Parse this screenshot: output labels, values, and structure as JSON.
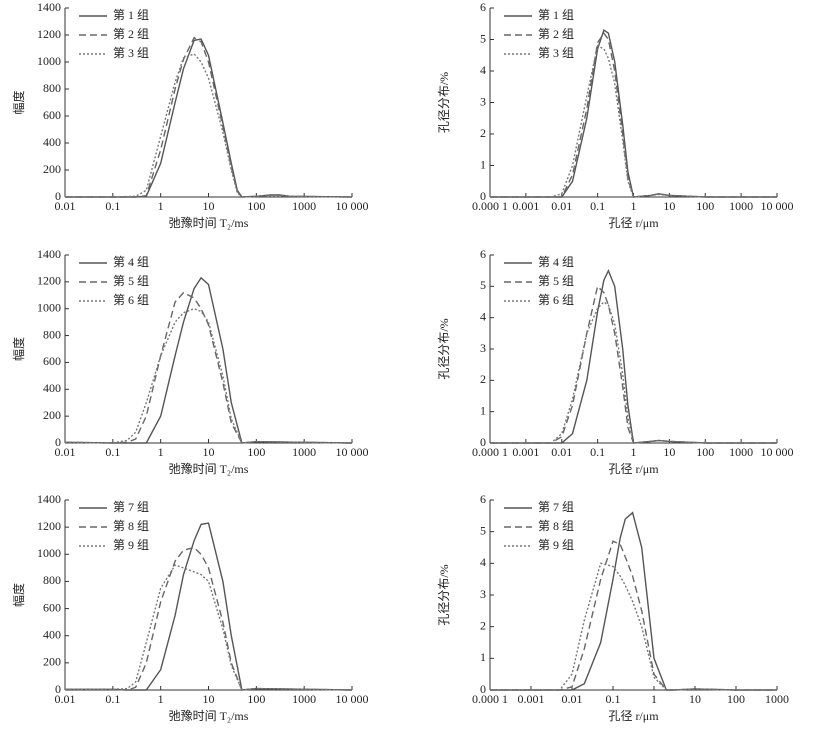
{
  "chart_data": [
    {
      "type": "line",
      "xscale": "log",
      "legend": "upper left",
      "xlabel": "弛豫时间 T₂/ms",
      "ylabel": "幅度",
      "xlim": [
        0.01,
        10000
      ],
      "ylim": [
        0,
        1400
      ],
      "xticks": [
        0.01,
        0.1,
        1,
        10,
        100,
        1000,
        {
          "value": 10000,
          "label": "10 000"
        }
      ],
      "yticks": [
        0,
        200,
        400,
        600,
        800,
        1000,
        1200,
        1400
      ],
      "x": [
        0.01,
        0.1,
        0.3,
        0.5,
        1,
        2,
        3,
        5,
        7,
        10,
        20,
        30,
        40,
        50,
        100,
        200,
        300,
        500,
        10000
      ],
      "series": [
        {
          "name": "第 1 组",
          "color": "#555555",
          "dash": "solid",
          "values": [
            0,
            0,
            0,
            5,
            250,
            700,
            950,
            1160,
            1170,
            1050,
            550,
            250,
            50,
            0,
            5,
            15,
            15,
            5,
            0
          ]
        },
        {
          "name": "第 2 组",
          "color": "#666666",
          "dash": "dashed",
          "values": [
            0,
            0,
            0,
            10,
            350,
            800,
            1020,
            1180,
            1150,
            1000,
            520,
            220,
            40,
            0,
            5,
            15,
            15,
            5,
            0
          ]
        },
        {
          "name": "第 3 组",
          "color": "#777777",
          "dash": "dotted",
          "values": [
            0,
            0,
            5,
            50,
            450,
            850,
            1030,
            1060,
            1000,
            880,
            480,
            200,
            30,
            0,
            5,
            10,
            10,
            5,
            0
          ]
        }
      ]
    },
    {
      "type": "line",
      "xscale": "log",
      "legend": "upper left",
      "xlabel": "孔径 r/μm",
      "ylabel": "孔径分布/%",
      "xlim": [
        0.0001,
        10000
      ],
      "ylim": [
        0,
        6
      ],
      "xticks": [
        {
          "value": 0.0001,
          "label": "0.000 1"
        },
        0.001,
        0.01,
        0.1,
        1,
        10,
        100,
        1000,
        {
          "value": 10000,
          "label": "10 000"
        }
      ],
      "yticks": [
        0,
        1,
        2,
        3,
        4,
        5,
        6
      ],
      "x": [
        0.0001,
        0.001,
        0.005,
        0.01,
        0.02,
        0.05,
        0.1,
        0.15,
        0.2,
        0.3,
        0.5,
        0.7,
        1,
        3,
        5,
        10,
        100,
        10000
      ],
      "series": [
        {
          "name": "第 1 组",
          "color": "#555555",
          "dash": "solid",
          "values": [
            0,
            0,
            0,
            0,
            0.5,
            2.5,
            4.7,
            5.3,
            5.2,
            4.3,
            2.3,
            0.8,
            0,
            0.05,
            0.1,
            0.05,
            0,
            0
          ]
        },
        {
          "name": "第 2 组",
          "color": "#666666",
          "dash": "dashed",
          "values": [
            0,
            0,
            0,
            0,
            0.7,
            2.8,
            4.9,
            5.2,
            5.0,
            4.0,
            2.0,
            0.6,
            0,
            0.05,
            0.1,
            0.05,
            0,
            0
          ]
        },
        {
          "name": "第 3 组",
          "color": "#777777",
          "dash": "dotted",
          "values": [
            0,
            0,
            0,
            0.1,
            1.0,
            3.2,
            4.8,
            4.7,
            4.4,
            3.6,
            1.8,
            0.5,
            0,
            0.05,
            0.08,
            0.05,
            0,
            0
          ]
        }
      ]
    },
    {
      "type": "line",
      "xscale": "log",
      "legend": "upper left",
      "xlabel": "弛豫时间 T₂/ms",
      "ylabel": "幅度",
      "xlim": [
        0.01,
        10000
      ],
      "ylim": [
        0,
        1400
      ],
      "xticks": [
        0.01,
        0.1,
        1,
        10,
        100,
        1000,
        {
          "value": 10000,
          "label": "10 000"
        }
      ],
      "yticks": [
        0,
        200,
        400,
        600,
        800,
        1000,
        1200,
        1400
      ],
      "x": [
        0.01,
        0.1,
        0.2,
        0.3,
        0.5,
        1,
        2,
        3,
        5,
        7,
        10,
        20,
        30,
        50,
        100,
        10000
      ],
      "series": [
        {
          "name": "第 4 组",
          "color": "#555555",
          "dash": "solid",
          "values": [
            5,
            0,
            0,
            0,
            0,
            200,
            650,
            900,
            1150,
            1230,
            1180,
            700,
            300,
            0,
            10,
            0
          ]
        },
        {
          "name": "第 5 组",
          "color": "#666666",
          "dash": "dashed",
          "values": [
            5,
            0,
            5,
            30,
            200,
            650,
            1050,
            1120,
            1080,
            1000,
            880,
            450,
            150,
            0,
            10,
            0
          ]
        },
        {
          "name": "第 6 组",
          "color": "#777777",
          "dash": "dotted",
          "values": [
            5,
            0,
            20,
            80,
            300,
            650,
            900,
            970,
            1000,
            980,
            900,
            500,
            180,
            0,
            10,
            0
          ]
        }
      ]
    },
    {
      "type": "line",
      "xscale": "log",
      "legend": "upper left",
      "xlabel": "孔径 r/μm",
      "ylabel": "孔径分布/%",
      "xlim": [
        0.0001,
        10000
      ],
      "ylim": [
        0,
        6
      ],
      "xticks": [
        {
          "value": 0.0001,
          "label": "0.000 1"
        },
        0.001,
        0.01,
        0.1,
        1,
        10,
        100,
        1000,
        {
          "value": 10000,
          "label": "10 000"
        }
      ],
      "yticks": [
        0,
        1,
        2,
        3,
        4,
        5,
        6
      ],
      "x": [
        0.0001,
        0.001,
        0.005,
        0.01,
        0.02,
        0.05,
        0.1,
        0.15,
        0.2,
        0.3,
        0.5,
        0.7,
        1,
        3,
        5,
        10,
        100,
        10000
      ],
      "series": [
        {
          "name": "第 4 组",
          "color": "#555555",
          "dash": "solid",
          "values": [
            0,
            0,
            0,
            0,
            0.3,
            2.0,
            4.2,
            5.2,
            5.5,
            5.0,
            3.0,
            1.2,
            0,
            0.05,
            0.08,
            0.05,
            0,
            0
          ]
        },
        {
          "name": "第 5 组",
          "color": "#666666",
          "dash": "dashed",
          "values": [
            0,
            0,
            0,
            0.2,
            1.2,
            3.5,
            5.0,
            4.8,
            4.4,
            3.5,
            1.8,
            0.5,
            0,
            0.05,
            0.08,
            0.05,
            0,
            0
          ]
        },
        {
          "name": "第 6 组",
          "color": "#777777",
          "dash": "dotted",
          "values": [
            0,
            0,
            0,
            0.3,
            1.4,
            3.5,
            4.3,
            4.5,
            4.4,
            3.8,
            2.2,
            0.8,
            0,
            0.05,
            0.08,
            0.05,
            0,
            0
          ]
        }
      ]
    },
    {
      "type": "line",
      "xscale": "log",
      "legend": "upper left",
      "xlabel": "弛豫时间 T₂/ms",
      "ylabel": "幅度",
      "xlim": [
        0.01,
        10000
      ],
      "ylim": [
        0,
        1400
      ],
      "xticks": [
        0.01,
        0.1,
        1,
        10,
        100,
        1000,
        {
          "value": 10000,
          "label": "10 000"
        }
      ],
      "yticks": [
        0,
        200,
        400,
        600,
        800,
        1000,
        1200,
        1400
      ],
      "x": [
        0.01,
        0.1,
        0.2,
        0.3,
        0.5,
        1,
        2,
        3,
        5,
        7,
        10,
        20,
        30,
        50,
        100,
        10000
      ],
      "series": [
        {
          "name": "第 7 组",
          "color": "#555555",
          "dash": "solid",
          "values": [
            5,
            5,
            0,
            0,
            0,
            150,
            550,
            850,
            1100,
            1220,
            1230,
            800,
            400,
            0,
            10,
            0
          ]
        },
        {
          "name": "第 8 组",
          "color": "#666666",
          "dash": "dashed",
          "values": [
            5,
            5,
            0,
            20,
            200,
            650,
            950,
            1030,
            1050,
            1000,
            900,
            500,
            200,
            0,
            10,
            0
          ]
        },
        {
          "name": "第 9 组",
          "color": "#777777",
          "dash": "dotted",
          "values": [
            5,
            5,
            10,
            60,
            350,
            750,
            920,
            900,
            870,
            850,
            800,
            450,
            180,
            0,
            10,
            0
          ]
        }
      ]
    },
    {
      "type": "line",
      "xscale": "log",
      "legend": "upper left",
      "xlabel": "孔径 r/μm",
      "ylabel": "孔径分布/%",
      "xlim": [
        0.0001,
        1000
      ],
      "ylim": [
        0,
        6
      ],
      "xticks": [
        {
          "value": 0.0001,
          "label": "0.000 1"
        },
        0.001,
        0.01,
        0.1,
        1,
        10,
        100,
        1000
      ],
      "yticks": [
        0,
        1,
        2,
        3,
        4,
        5,
        6
      ],
      "x": [
        0.0001,
        0.001,
        0.005,
        0.01,
        0.02,
        0.05,
        0.1,
        0.15,
        0.2,
        0.3,
        0.5,
        1,
        2,
        3,
        10,
        100,
        1000
      ],
      "series": [
        {
          "name": "第 7 组",
          "color": "#555555",
          "dash": "solid",
          "values": [
            0,
            0,
            0,
            0,
            0.2,
            1.5,
            3.5,
            4.8,
            5.4,
            5.6,
            4.5,
            1.0,
            0,
            0,
            0.03,
            0,
            0
          ]
        },
        {
          "name": "第 8 组",
          "color": "#666666",
          "dash": "dashed",
          "values": [
            0,
            0,
            0,
            0.1,
            1.3,
            3.5,
            4.7,
            4.6,
            4.2,
            3.6,
            2.5,
            0.5,
            0,
            0,
            0.03,
            0,
            0
          ]
        },
        {
          "name": "第 9 组",
          "color": "#777777",
          "dash": "dotted",
          "values": [
            0,
            0,
            0,
            0.5,
            2.2,
            4.0,
            3.9,
            3.6,
            3.3,
            2.8,
            2.0,
            0.4,
            0,
            0,
            0.03,
            0,
            0
          ]
        }
      ]
    }
  ]
}
